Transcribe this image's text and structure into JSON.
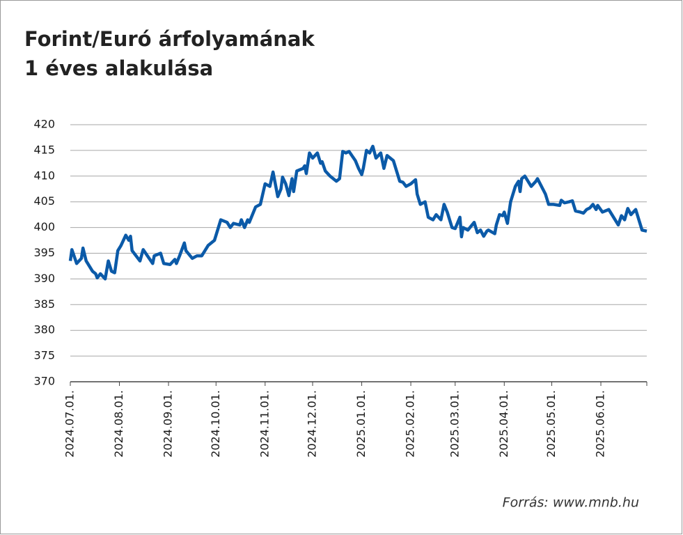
{
  "chart_data": {
    "type": "line",
    "title": [
      "Forint/Euró árfolyamának",
      "1 éves alakulása"
    ],
    "source": "Forrás: www.mnb.hu",
    "x": [
      "2024-07-01",
      "2024-07-02",
      "2024-07-05",
      "2024-07-08",
      "2024-07-09",
      "2024-07-11",
      "2024-07-15",
      "2024-07-17",
      "2024-07-18",
      "2024-07-20",
      "2024-07-23",
      "2024-07-25",
      "2024-07-27",
      "2024-07-29",
      "2024-07-31",
      "2024-08-02",
      "2024-08-05",
      "2024-08-07",
      "2024-08-08",
      "2024-08-09",
      "2024-08-14",
      "2024-08-16",
      "2024-08-22",
      "2024-08-23",
      "2024-08-27",
      "2024-08-29",
      "2024-09-02",
      "2024-09-05",
      "2024-09-06",
      "2024-09-08",
      "2024-09-11",
      "2024-09-12",
      "2024-09-16",
      "2024-09-19",
      "2024-09-22",
      "2024-09-26",
      "2024-09-30",
      "2024-10-04",
      "2024-10-08",
      "2024-10-10",
      "2024-10-12",
      "2024-10-16",
      "2024-10-17",
      "2024-10-19",
      "2024-10-21",
      "2024-10-22",
      "2024-10-26",
      "2024-10-29",
      "2024-11-01",
      "2024-11-04",
      "2024-11-06",
      "2024-11-09",
      "2024-11-11",
      "2024-11-12",
      "2024-11-14",
      "2024-11-16",
      "2024-11-18",
      "2024-11-19",
      "2024-11-21",
      "2024-11-25",
      "2024-11-26",
      "2024-11-27",
      "2024-11-29",
      "2024-12-01",
      "2024-12-04",
      "2024-12-06",
      "2024-12-07",
      "2024-12-09",
      "2024-12-12",
      "2024-12-16",
      "2024-12-18",
      "2024-12-20",
      "2024-12-22",
      "2024-12-24",
      "2024-12-28",
      "2024-12-30",
      "2025-01-01",
      "2025-01-02",
      "2025-01-04",
      "2025-01-06",
      "2025-01-08",
      "2025-01-10",
      "2025-01-13",
      "2025-01-15",
      "2025-01-17",
      "2025-01-21",
      "2025-01-23",
      "2025-01-25",
      "2025-01-27",
      "2025-01-29",
      "2025-02-01",
      "2025-02-04",
      "2025-02-05",
      "2025-02-07",
      "2025-02-10",
      "2025-02-12",
      "2025-02-15",
      "2025-02-17",
      "2025-02-20",
      "2025-02-22",
      "2025-02-24",
      "2025-02-26",
      "2025-02-27",
      "2025-03-01",
      "2025-03-04",
      "2025-03-05",
      "2025-03-06",
      "2025-03-09",
      "2025-03-13",
      "2025-03-15",
      "2025-03-17",
      "2025-03-19",
      "2025-03-21",
      "2025-03-22",
      "2025-03-26",
      "2025-03-27",
      "2025-03-29",
      "2025-03-31",
      "2025-04-01",
      "2025-04-03",
      "2025-04-05",
      "2025-04-08",
      "2025-04-10",
      "2025-04-11",
      "2025-04-12",
      "2025-04-14",
      "2025-04-18",
      "2025-04-21",
      "2025-04-22",
      "2025-04-27",
      "2025-04-29",
      "2025-05-02",
      "2025-05-06",
      "2025-05-07",
      "2025-05-09",
      "2025-05-12",
      "2025-05-14",
      "2025-05-16",
      "2025-05-19",
      "2025-05-21",
      "2025-05-23",
      "2025-05-25",
      "2025-05-27",
      "2025-05-29",
      "2025-05-30",
      "2025-06-02",
      "2025-06-06",
      "2025-06-08",
      "2025-06-10",
      "2025-06-12",
      "2025-06-14",
      "2025-06-16",
      "2025-06-18",
      "2025-06-20",
      "2025-06-23",
      "2025-06-25",
      "2025-06-27",
      "2025-06-30"
    ],
    "series": [
      {
        "color": "#0b5aa8",
        "values": [
          393.5,
          395.7,
          393,
          394,
          396,
          393.5,
          391.5,
          391,
          390.2,
          391,
          390,
          393.5,
          391.5,
          391.2,
          395.5,
          396.5,
          398.5,
          397.5,
          398.3,
          395.5,
          393.5,
          395.7,
          393,
          394.5,
          395,
          393,
          392.8,
          393.8,
          393,
          394.5,
          397,
          395.5,
          394,
          394.5,
          394.5,
          396.5,
          397.5,
          401.5,
          401,
          400,
          400.8,
          400.5,
          401.5,
          400,
          401.5,
          401,
          404,
          404.5,
          408.5,
          408,
          410.8,
          406,
          407.5,
          409.8,
          408.5,
          406.2,
          409.5,
          407,
          411,
          411.5,
          412,
          410.5,
          414.5,
          413.5,
          414.5,
          412.5,
          412.8,
          411,
          410,
          409,
          409.5,
          414.8,
          414.5,
          414.8,
          413,
          411.5,
          410.3,
          411.5,
          415,
          414.5,
          415.8,
          413.5,
          414.5,
          411.5,
          414,
          413,
          411,
          409,
          408.8,
          408,
          408.5,
          409.3,
          406.5,
          404.5,
          405,
          402,
          401.5,
          402.5,
          401.5,
          404.5,
          403,
          401,
          400,
          399.8,
          402,
          398.2,
          400,
          399.5,
          401,
          399,
          399.5,
          398.3,
          399.3,
          399.5,
          398.8,
          400.5,
          402.5,
          402.3,
          403,
          400.8,
          405,
          408,
          409,
          407,
          409.5,
          410,
          408,
          409,
          409.5,
          406.5,
          404.5,
          404.5,
          404.3,
          405.3,
          404.8,
          405,
          405.2,
          403.2,
          403,
          402.8,
          403.5,
          403.8,
          404.5,
          403.5,
          404.3,
          403,
          403.5,
          402.5,
          401.5,
          400.5,
          402.3,
          401.5,
          403.7,
          402.5,
          403.5,
          401.5,
          399.5,
          399.3
        ]
      }
    ],
    "xlim": [
      "2024-07-01",
      "2025-06-30"
    ],
    "xticks": [
      {
        "value": "2024-07-01",
        "label": "2024.07.01."
      },
      {
        "value": "2024-08-01",
        "label": "2024.08.01."
      },
      {
        "value": "2024-09-01",
        "label": "2024.09.01."
      },
      {
        "value": "2024-10-01",
        "label": "2024.10.01."
      },
      {
        "value": "2024-11-01",
        "label": "2024.11.01."
      },
      {
        "value": "2024-12-01",
        "label": "2024.12.01."
      },
      {
        "value": "2025-01-01",
        "label": "2025.01.01."
      },
      {
        "value": "2025-02-01",
        "label": "2025.02.01."
      },
      {
        "value": "2025-03-01",
        "label": "2025.03.01."
      },
      {
        "value": "2025-04-01",
        "label": "2025.04.01."
      },
      {
        "value": "2025-05-01",
        "label": "2025.05.01."
      },
      {
        "value": "2025-06-01",
        "label": "2025.06.01."
      }
    ],
    "ylim": [
      370,
      420
    ],
    "yticks": [
      370,
      375,
      380,
      385,
      390,
      395,
      400,
      405,
      410,
      415,
      420
    ],
    "grid": true
  }
}
